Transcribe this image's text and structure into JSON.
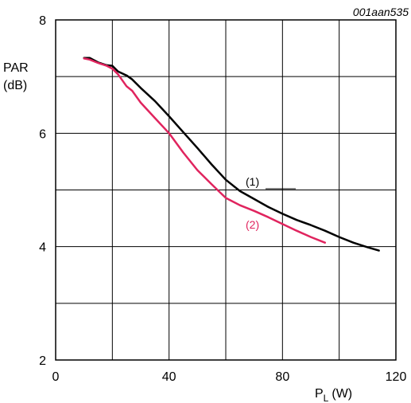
{
  "figure_ref": "001aan535",
  "chart_data": {
    "type": "line",
    "ylabel_line1": "PAR",
    "ylabel_line2": "(dB)",
    "xlabel_main": "P",
    "xlabel_sub": "L",
    "xlabel_unit": "(W)",
    "xlim": [
      0,
      120
    ],
    "ylim": [
      2,
      8
    ],
    "xticks": [
      0,
      40,
      80,
      120
    ],
    "yticks": [
      2,
      4,
      6,
      8
    ],
    "x_gridlines": [
      0,
      20,
      40,
      60,
      80,
      100,
      120
    ],
    "y_gridlines": [
      2,
      3,
      4,
      5,
      6,
      7,
      8
    ],
    "grid": true,
    "series": [
      {
        "name": "(1)",
        "color": "#000000",
        "x": [
          10,
          12,
          15,
          18,
          20,
          22,
          25,
          27,
          30,
          35,
          40,
          45,
          50,
          55,
          60,
          65,
          70,
          75,
          80,
          85,
          90,
          95,
          100,
          105,
          110,
          114
        ],
        "y": [
          7.33,
          7.33,
          7.25,
          7.2,
          7.19,
          7.09,
          7.02,
          6.95,
          6.8,
          6.57,
          6.3,
          6.02,
          5.74,
          5.45,
          5.18,
          4.98,
          4.84,
          4.7,
          4.58,
          4.47,
          4.38,
          4.28,
          4.17,
          4.07,
          3.99,
          3.93
        ]
      },
      {
        "name": "(2)",
        "color": "#e0245e",
        "x": [
          10,
          12,
          15,
          18,
          20,
          22,
          25,
          27,
          30,
          35,
          40,
          45,
          50,
          55,
          60,
          65,
          70,
          75,
          80,
          85,
          90,
          95
        ],
        "y": [
          7.32,
          7.3,
          7.24,
          7.19,
          7.14,
          7.04,
          6.83,
          6.75,
          6.54,
          6.27,
          6.0,
          5.66,
          5.35,
          5.1,
          4.86,
          4.73,
          4.63,
          4.52,
          4.4,
          4.28,
          4.17,
          4.07
        ]
      }
    ]
  }
}
